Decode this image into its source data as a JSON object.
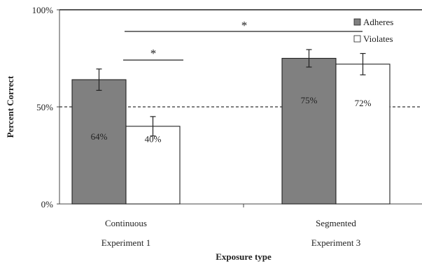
{
  "chart_data": {
    "type": "bar",
    "xlabel": "Exposure type",
    "ylabel": "Percent Correct",
    "ylim": [
      0,
      100
    ],
    "yticks": [
      "0%",
      "50%",
      "100%"
    ],
    "groups": [
      {
        "category": "Continuous",
        "sublabel": "Experiment 1"
      },
      {
        "category": "Segmented",
        "sublabel": "Experiment 3"
      }
    ],
    "series": [
      {
        "name": "Adheres",
        "color": "#808080",
        "values": [
          64,
          75
        ],
        "labels": [
          "64%",
          "75%"
        ],
        "errors": [
          5.5,
          4.5
        ]
      },
      {
        "name": "Violates",
        "color": "#ffffff",
        "values": [
          40,
          72
        ],
        "labels": [
          "40%",
          "72%"
        ],
        "errors": [
          5,
          5.5
        ]
      }
    ],
    "reference_line": {
      "value": 50,
      "style": "dashed"
    },
    "significance": [
      {
        "label": "*",
        "between": "Continuous Adheres vs Continuous Violates"
      },
      {
        "label": "*",
        "between": "Continuous Adheres vs Segmented Adheres"
      }
    ],
    "legend_position": "top-right",
    "grid": false
  }
}
